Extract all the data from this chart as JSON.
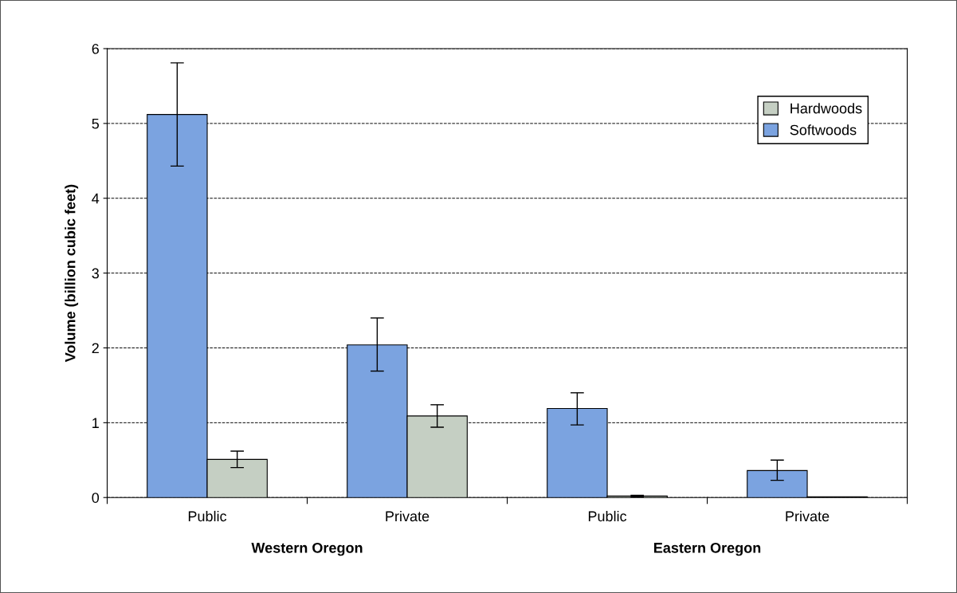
{
  "chart_data": {
    "type": "bar",
    "ylabel": "Volume (billion cubic feet)",
    "categories": [
      "Public",
      "Private",
      "Public",
      "Private"
    ],
    "series": [
      {
        "name": "Softwoods",
        "color": "#7ba3e0",
        "values": [
          5.12,
          2.04,
          1.19,
          0.36
        ],
        "errors": [
          [
            4.43,
            5.81
          ],
          [
            1.69,
            2.4
          ],
          [
            0.97,
            1.4
          ],
          [
            0.23,
            0.5
          ]
        ]
      },
      {
        "name": "Hardwoods",
        "color": "#c5cfc3",
        "values": [
          0.51,
          1.09,
          0.02,
          0.01
        ],
        "errors": [
          [
            0.4,
            0.62
          ],
          [
            0.94,
            1.24
          ],
          [
            0.01,
            0.03
          ],
          null
        ]
      }
    ],
    "ylim": [
      0,
      6
    ],
    "yticks": [
      0,
      1,
      2,
      3,
      4,
      5,
      6
    ],
    "grid": "y",
    "legend": "top right",
    "annotations": [
      "Western Oregon",
      "Eastern Oregon"
    ]
  }
}
